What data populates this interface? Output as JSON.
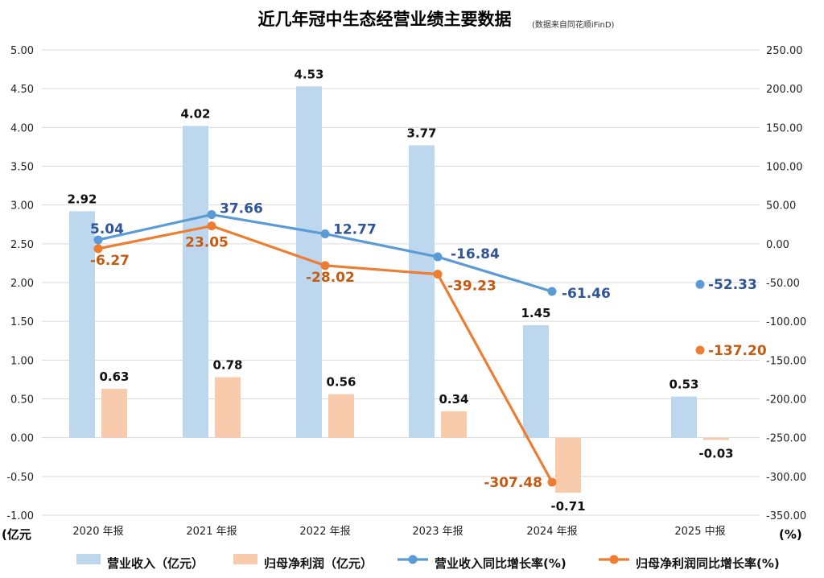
{
  "chart_data": {
    "type": "bar",
    "title": "近几年冠中生态经营业绩主要数据",
    "subtitle": "(数据来自同花顺iFinD)",
    "categories": [
      "2020 年报",
      "2021 年报",
      "2022 年报",
      "2023 年报",
      "2024 年报",
      "2025 中报"
    ],
    "left_axis": {
      "unit": "(亿元",
      "ylim": [
        -1.0,
        5.0
      ],
      "ticks": [
        "5.00",
        "4.50",
        "4.00",
        "3.50",
        "3.00",
        "2.50",
        "2.00",
        "1.50",
        "1.00",
        "0.50",
        "0.00",
        "-0.50",
        "-1.00"
      ],
      "tick_values": [
        5.0,
        4.5,
        4.0,
        3.5,
        3.0,
        2.5,
        2.0,
        1.5,
        1.0,
        0.5,
        0.0,
        -0.5,
        -1.0
      ]
    },
    "right_axis": {
      "unit": "(%)",
      "ylim": [
        -350,
        250
      ],
      "ticks": [
        "250.00",
        "200.00",
        "150.00",
        "100.00",
        "50.00",
        "0.00",
        "-50.00",
        "-100.00",
        "-150.00",
        "-200.00",
        "-250.00",
        "-300.00",
        "-350.00"
      ],
      "tick_values": [
        250,
        200,
        150,
        100,
        50,
        0,
        -50,
        -100,
        -150,
        -200,
        -250,
        -300,
        -350
      ]
    },
    "bar_series": [
      {
        "name": "营业收入（亿元）",
        "color": "#bdd7ee",
        "values": [
          2.92,
          4.02,
          4.53,
          3.77,
          1.45,
          0.53
        ],
        "labels": [
          "2.92",
          "4.02",
          "4.53",
          "3.77",
          "1.45",
          "0.53"
        ]
      },
      {
        "name": "归母净利润（亿元）",
        "color": "#f8cbad",
        "values": [
          0.63,
          0.78,
          0.56,
          0.34,
          -0.71,
          -0.03
        ],
        "labels": [
          "0.63",
          "0.78",
          "0.56",
          "0.34",
          "-0.71",
          "-0.03"
        ]
      }
    ],
    "line_series": [
      {
        "name": "营业收入同比增长率(%)",
        "color": "#5b9bd5",
        "label_color": "#2f5597",
        "values": [
          5.04,
          37.66,
          12.77,
          -16.84,
          -61.46,
          -52.33
        ],
        "labels": [
          "5.04",
          "37.66",
          "12.77",
          "-16.84",
          "-61.46",
          "-52.33"
        ],
        "connected": [
          true,
          true,
          true,
          true,
          true,
          false
        ]
      },
      {
        "name": "归母净利润同比增长率(%)",
        "color": "#ed7d31",
        "label_color": "#c55a11",
        "values": [
          -6.27,
          23.05,
          -28.02,
          -39.23,
          -307.48,
          -137.2
        ],
        "labels": [
          "-6.27",
          "23.05",
          "-28.02",
          "-39.23",
          "-307.48",
          "-137.20"
        ],
        "connected": [
          true,
          true,
          true,
          true,
          true,
          false
        ]
      }
    ],
    "grid": true,
    "legend_position": "bottom"
  }
}
